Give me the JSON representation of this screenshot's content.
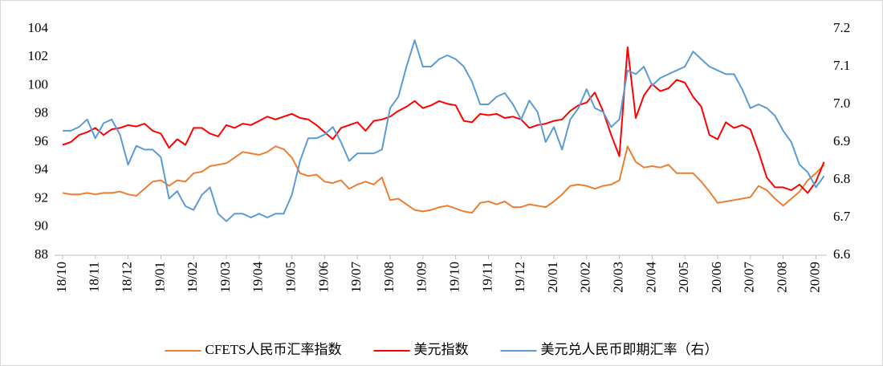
{
  "chart_data": {
    "type": "line",
    "categories": [
      "18/10",
      null,
      null,
      null,
      "18/11",
      null,
      null,
      null,
      "18/12",
      null,
      null,
      null,
      "19/01",
      null,
      null,
      null,
      "19/02",
      null,
      null,
      null,
      "19/03",
      null,
      null,
      null,
      "19/04",
      null,
      null,
      null,
      "19/05",
      null,
      null,
      null,
      "19/06",
      null,
      null,
      null,
      "19/07",
      null,
      null,
      null,
      "19/08",
      null,
      null,
      null,
      "19/09",
      null,
      null,
      null,
      "19/10",
      null,
      null,
      null,
      "19/11",
      null,
      null,
      null,
      "19/12",
      null,
      null,
      null,
      "20/01",
      null,
      null,
      null,
      "20/02",
      null,
      null,
      null,
      "20/03",
      null,
      null,
      null,
      "20/04",
      null,
      null,
      null,
      "20/05",
      null,
      null,
      null,
      "20/06",
      null,
      null,
      null,
      "20/07",
      null,
      null,
      null,
      "20/08",
      null,
      null,
      null,
      "20/09",
      null
    ],
    "series": [
      {
        "name": "CFETS人民币汇率指数",
        "color": "#ED7D31",
        "values": [
          92.4,
          92.3,
          92.3,
          92.4,
          92.3,
          92.4,
          92.4,
          92.5,
          92.3,
          92.2,
          92.7,
          93.2,
          93.3,
          92.9,
          93.3,
          93.2,
          93.8,
          93.9,
          94.3,
          94.4,
          94.5,
          94.9,
          95.3,
          95.2,
          95.1,
          95.3,
          95.7,
          95.5,
          94.9,
          93.8,
          93.6,
          93.7,
          93.2,
          93.1,
          93.3,
          92.7,
          93.0,
          93.2,
          93.0,
          93.5,
          91.9,
          92.0,
          91.6,
          91.2,
          91.1,
          91.2,
          91.4,
          91.5,
          91.3,
          91.1,
          91.0,
          91.7,
          91.8,
          91.6,
          91.8,
          91.4,
          91.4,
          91.6,
          91.5,
          91.4,
          91.8,
          92.3,
          92.9,
          93.0,
          92.9,
          92.7,
          92.9,
          93.0,
          93.3,
          95.7,
          94.6,
          94.2,
          94.3,
          94.2,
          94.4,
          93.8,
          93.8,
          93.8,
          93.2,
          92.5,
          91.7,
          91.8,
          91.9,
          92.0,
          92.1,
          92.9,
          92.6,
          92.0,
          91.5,
          92.0,
          92.5,
          93.3,
          93.8,
          94.4
        ]
      },
      {
        "name": "美元指数",
        "color": "#FF0000",
        "values": [
          95.8,
          96.0,
          96.5,
          96.7,
          97.0,
          96.5,
          96.9,
          97.0,
          97.2,
          97.1,
          97.3,
          96.8,
          96.6,
          95.6,
          96.2,
          95.8,
          97.0,
          97.0,
          96.6,
          96.4,
          97.2,
          97.0,
          97.3,
          97.2,
          97.5,
          97.8,
          97.6,
          97.8,
          98.0,
          97.7,
          97.6,
          97.2,
          96.7,
          96.2,
          97.0,
          97.2,
          97.4,
          96.8,
          97.5,
          97.6,
          97.8,
          98.2,
          98.5,
          98.9,
          98.4,
          98.6,
          98.9,
          98.7,
          98.6,
          97.5,
          97.4,
          98.0,
          97.9,
          98.0,
          97.7,
          97.8,
          97.6,
          97.0,
          97.2,
          97.3,
          97.5,
          97.6,
          98.2,
          98.6,
          98.8,
          99.5,
          98.2,
          96.5,
          95.0,
          102.7,
          97.7,
          99.3,
          100.1,
          99.6,
          99.8,
          100.4,
          100.2,
          99.2,
          98.5,
          96.5,
          96.2,
          97.4,
          97.0,
          97.2,
          96.9,
          95.3,
          93.5,
          92.8,
          92.8,
          92.6,
          93.0,
          92.4,
          93.2,
          94.6
        ]
      },
      {
        "name": "美元兑人民币即期汇率（右）",
        "color": "#5B9BD5",
        "axis": "y2",
        "values": [
          6.93,
          6.93,
          6.94,
          6.96,
          6.91,
          6.95,
          6.96,
          6.92,
          6.84,
          6.89,
          6.88,
          6.88,
          6.86,
          6.75,
          6.77,
          6.73,
          6.72,
          6.76,
          6.78,
          6.71,
          6.69,
          6.71,
          6.71,
          6.7,
          6.71,
          6.7,
          6.71,
          6.71,
          6.76,
          6.85,
          6.91,
          6.91,
          6.92,
          6.94,
          6.9,
          6.85,
          6.87,
          6.87,
          6.87,
          6.88,
          6.99,
          7.02,
          7.1,
          7.17,
          7.1,
          7.1,
          7.12,
          7.13,
          7.12,
          7.1,
          7.06,
          7.0,
          7.0,
          7.02,
          7.03,
          7.0,
          6.96,
          7.01,
          6.98,
          6.9,
          6.94,
          6.88,
          6.96,
          6.99,
          7.04,
          6.99,
          6.98,
          6.94,
          6.96,
          7.09,
          7.08,
          7.1,
          7.05,
          7.07,
          7.08,
          7.09,
          7.1,
          7.14,
          7.12,
          7.1,
          7.09,
          7.08,
          7.08,
          7.04,
          6.99,
          7.0,
          6.99,
          6.97,
          6.93,
          6.9,
          6.84,
          6.82,
          6.78,
          6.81
        ]
      }
    ],
    "ylim": [
      88,
      104
    ],
    "yticks": [
      88,
      90,
      92,
      94,
      96,
      98,
      100,
      102,
      104
    ],
    "y2lim": [
      6.6,
      7.2
    ],
    "y2ticks": [
      6.6,
      6.7,
      6.8,
      6.9,
      {
        "value": 7,
        "label": "7.0"
      },
      7.1,
      7.2
    ],
    "legend": "bottom"
  }
}
